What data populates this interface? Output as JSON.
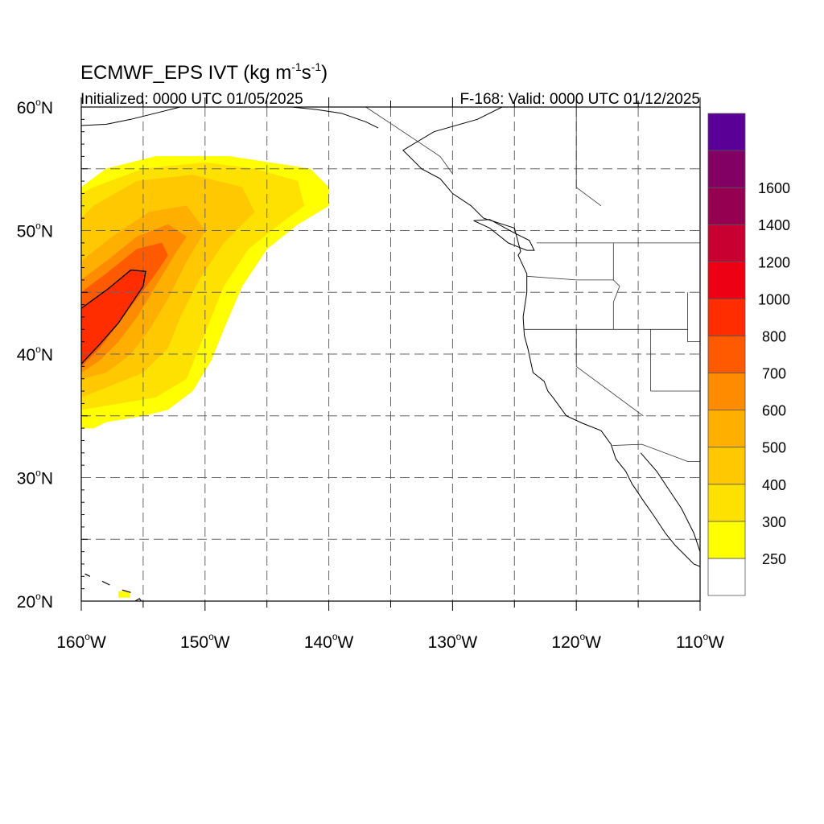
{
  "title": {
    "main": "ECMWF_EPS IVT (kg m",
    "sup1": "-1",
    "mid": "s",
    "sup2": "-1",
    "end": ")"
  },
  "subtitle_left": "Initialized: 0000 UTC 01/05/2025",
  "subtitle_right": "F-168: Valid: 0000 UTC 01/12/2025",
  "map": {
    "lon_min": -160,
    "lon_max": -110,
    "lat_min": 20,
    "lat_max": 60,
    "grid": true,
    "grid_step_deg": 5
  },
  "lon_ticks": [
    {
      "value": -160,
      "num": "160",
      "deg": "o",
      "hem": "W"
    },
    {
      "value": -150,
      "num": "150",
      "deg": "o",
      "hem": "W"
    },
    {
      "value": -140,
      "num": "140",
      "deg": "o",
      "hem": "W"
    },
    {
      "value": -130,
      "num": "130",
      "deg": "o",
      "hem": "W"
    },
    {
      "value": -120,
      "num": "120",
      "deg": "o",
      "hem": "W"
    },
    {
      "value": -110,
      "num": "110",
      "deg": "o",
      "hem": "W"
    }
  ],
  "lat_ticks": [
    {
      "value": 60,
      "num": "60",
      "deg": "o",
      "hem": "N"
    },
    {
      "value": 50,
      "num": "50",
      "deg": "o",
      "hem": "N"
    },
    {
      "value": 40,
      "num": "40",
      "deg": "o",
      "hem": "N"
    },
    {
      "value": 30,
      "num": "30",
      "deg": "o",
      "hem": "N"
    },
    {
      "value": 20,
      "num": "20",
      "deg": "o",
      "hem": "N"
    }
  ],
  "colorbar": {
    "colors": [
      "#ffffff",
      "#ffff00",
      "#ffe100",
      "#ffc800",
      "#ffaf00",
      "#ff8c00",
      "#ff5a00",
      "#ff2d00",
      "#ee0014",
      "#c80032",
      "#960050",
      "#820064",
      "#5a0096"
    ],
    "labels": [
      "250",
      "300",
      "400",
      "500",
      "600",
      "700",
      "800",
      "1000",
      "1200",
      "1400",
      "1600"
    ]
  },
  "ivt_field": {
    "units": "kg m-1 s-1",
    "contour_value": 800,
    "bands": [
      {
        "level": 250,
        "color": "#ffff00",
        "polygon": [
          [
            -160,
            34
          ],
          [
            -159,
            34
          ],
          [
            -158,
            34.5
          ],
          [
            -155,
            35
          ],
          [
            -153,
            35.5
          ],
          [
            -151,
            37
          ],
          [
            -149.5,
            39.5
          ],
          [
            -148.5,
            42
          ],
          [
            -147,
            45.5
          ],
          [
            -145,
            48.5
          ],
          [
            -142.5,
            50.5
          ],
          [
            -140,
            52
          ],
          [
            -140,
            53.5
          ],
          [
            -141.5,
            55
          ],
          [
            -148,
            56
          ],
          [
            -154,
            56
          ],
          [
            -158,
            55
          ],
          [
            -160,
            53.5
          ]
        ]
      },
      {
        "level": 300,
        "color": "#ffe100",
        "polygon": [
          [
            -160,
            35.5
          ],
          [
            -157,
            36
          ],
          [
            -154,
            36.5
          ],
          [
            -151.5,
            38
          ],
          [
            -150.5,
            40.5
          ],
          [
            -149.5,
            43
          ],
          [
            -148.5,
            45.5
          ],
          [
            -146.5,
            48.5
          ],
          [
            -144,
            50.5
          ],
          [
            -142,
            52
          ],
          [
            -142.5,
            54
          ],
          [
            -146,
            55
          ],
          [
            -150,
            55.5
          ],
          [
            -155,
            55
          ],
          [
            -159,
            53.5
          ],
          [
            -160,
            53
          ]
        ]
      },
      {
        "level": 400,
        "color": "#ffc800",
        "polygon": [
          [
            -160,
            36.5
          ],
          [
            -157.5,
            37.5
          ],
          [
            -155,
            38.5
          ],
          [
            -153,
            40.5
          ],
          [
            -152,
            43
          ],
          [
            -150.5,
            46
          ],
          [
            -148.5,
            49
          ],
          [
            -146,
            51.5
          ],
          [
            -147,
            53.5
          ],
          [
            -151,
            54.5
          ],
          [
            -155.5,
            54
          ],
          [
            -159,
            52
          ],
          [
            -160,
            51
          ]
        ]
      },
      {
        "level": 500,
        "color": "#ffaf00",
        "polygon": [
          [
            -160,
            38
          ],
          [
            -158,
            38.5
          ],
          [
            -156,
            40
          ],
          [
            -154.5,
            42
          ],
          [
            -153,
            44.5
          ],
          [
            -151.5,
            47.5
          ],
          [
            -150,
            50
          ],
          [
            -151.5,
            52
          ],
          [
            -154.5,
            51.5
          ],
          [
            -157.5,
            49.5
          ],
          [
            -160,
            47.5
          ]
        ]
      },
      {
        "level": 600,
        "color": "#ff8c00",
        "polygon": [
          [
            -160,
            38.5
          ],
          [
            -158.5,
            39.5
          ],
          [
            -157,
            41
          ],
          [
            -155.5,
            43
          ],
          [
            -154,
            45.5
          ],
          [
            -152.5,
            48
          ],
          [
            -151.5,
            49.5
          ],
          [
            -153,
            50.5
          ],
          [
            -155.5,
            49.5
          ],
          [
            -158,
            47.5
          ],
          [
            -160,
            46
          ]
        ]
      },
      {
        "level": 700,
        "color": "#ff5a00",
        "polygon": [
          [
            -160,
            39
          ],
          [
            -158.5,
            40.5
          ],
          [
            -157,
            42.5
          ],
          [
            -155.5,
            44.5
          ],
          [
            -154,
            46.5
          ],
          [
            -153,
            48
          ],
          [
            -153.5,
            49
          ],
          [
            -155.5,
            48.5
          ],
          [
            -158,
            46.5
          ],
          [
            -160,
            45
          ]
        ]
      },
      {
        "level": 800,
        "color": "#ff2d00",
        "polygon": [
          [
            -160,
            39.2
          ],
          [
            -158.5,
            40.8
          ],
          [
            -157,
            42.5
          ],
          [
            -156,
            44
          ],
          [
            -155,
            45.5
          ],
          [
            -154.8,
            46.7
          ],
          [
            -156,
            46.8
          ],
          [
            -157.8,
            45.3
          ],
          [
            -160,
            43.7
          ]
        ]
      }
    ],
    "hawaii_blip": {
      "level": 250,
      "color": "#ffff00"
    }
  },
  "coastline": [
    [
      -126,
      60
    ],
    [
      -128,
      59
    ],
    [
      -131.5,
      58
    ],
    [
      -134,
      56.5
    ],
    [
      -132.5,
      55
    ],
    [
      -131,
      54.2
    ],
    [
      -130,
      53
    ],
    [
      -128.5,
      52
    ],
    [
      -127.5,
      51
    ],
    [
      -125,
      50.2
    ],
    [
      -124.5,
      48.3
    ],
    [
      -124.7,
      48
    ],
    [
      -124,
      46.5
    ],
    [
      -124,
      45
    ],
    [
      -124.3,
      43
    ],
    [
      -124.2,
      41.5
    ],
    [
      -123.9,
      40.4
    ],
    [
      -123.5,
      38.5
    ],
    [
      -122.6,
      37.8
    ],
    [
      -122.3,
      37
    ],
    [
      -121.9,
      36.5
    ],
    [
      -120.8,
      35
    ],
    [
      -119.5,
      34.4
    ],
    [
      -118,
      33.8
    ],
    [
      -117.2,
      32.7
    ],
    [
      -116.8,
      31.5
    ],
    [
      -116,
      30.5
    ],
    [
      -115.5,
      29.5
    ],
    [
      -114.5,
      28
    ],
    [
      -113.8,
      27
    ],
    [
      -112.8,
      25.5
    ],
    [
      -112,
      24.5
    ],
    [
      -110.5,
      23
    ],
    [
      -110,
      22.8
    ]
  ],
  "gulf_california": [
    [
      -114.8,
      32
    ],
    [
      -113.5,
      30.5
    ],
    [
      -112.5,
      29
    ],
    [
      -111.5,
      27.5
    ],
    [
      -110.5,
      25.5
    ],
    [
      -110,
      24
    ],
    [
      -110,
      23
    ]
  ],
  "vancouver_island": [
    [
      -128.3,
      50.8
    ],
    [
      -127,
      50.2
    ],
    [
      -125.5,
      49
    ],
    [
      -124,
      48.4
    ],
    [
      -123.4,
      48.4
    ],
    [
      -123.8,
      49.2
    ],
    [
      -125,
      49.8
    ],
    [
      -127,
      50.9
    ],
    [
      -128.3,
      50.8
    ]
  ],
  "alaska_coast": [
    [
      -160,
      58.5
    ],
    [
      -158,
      58.6
    ],
    [
      -156,
      59
    ],
    [
      -154,
      59.5
    ],
    [
      -152,
      60
    ],
    [
      -151,
      60
    ],
    [
      -149,
      60
    ],
    [
      -148,
      60
    ],
    [
      -146,
      60
    ],
    [
      -143,
      60
    ],
    [
      -141,
      59.8
    ],
    [
      -139,
      59.5
    ],
    [
      -137,
      58.8
    ],
    [
      -136,
      58.3
    ]
  ],
  "borders": [
    [
      [
        -123.2,
        49
      ],
      [
        -110,
        49
      ]
    ],
    [
      [
        -124.2,
        42
      ],
      [
        -120,
        42
      ],
      [
        -117,
        42
      ],
      [
        -111,
        42
      ]
    ],
    [
      [
        -120,
        42
      ],
      [
        -120,
        39
      ],
      [
        -114.6,
        35
      ]
    ],
    [
      [
        -117,
        49
      ],
      [
        -117,
        46
      ],
      [
        -116.5,
        45.5
      ],
      [
        -117,
        44.2
      ],
      [
        -117,
        42
      ]
    ],
    [
      [
        -124,
        46.3
      ],
      [
        -120,
        46
      ],
      [
        -117,
        46
      ]
    ],
    [
      [
        -114,
        42
      ],
      [
        -114,
        37
      ]
    ],
    [
      [
        -111,
        45
      ],
      [
        -111,
        41
      ],
      [
        -111,
        41
      ],
      [
        -110,
        41
      ]
    ],
    [
      [
        -114,
        37
      ],
      [
        -110,
        37
      ]
    ],
    [
      [
        -117.1,
        32.6
      ],
      [
        -114.7,
        32.7
      ],
      [
        -111,
        31.3
      ],
      [
        -110,
        31.3
      ]
    ],
    [
      [
        -137,
        60
      ],
      [
        -134,
        58
      ],
      [
        -131,
        56
      ],
      [
        -130,
        54.6
      ]
    ],
    [
      [
        -120,
        60
      ],
      [
        -120,
        53.5
      ],
      [
        -118,
        52
      ]
    ]
  ],
  "islands": [
    {
      "name": "Hawaii",
      "coords": [
        [
          -156,
          19.8
        ],
        [
          -155.3,
          20.2
        ],
        [
          -154.8,
          19.5
        ]
      ]
    },
    {
      "name": "Maui",
      "coords": [
        [
          -156.7,
          20.9
        ],
        [
          -156,
          20.7
        ]
      ]
    },
    {
      "name": "Oahu",
      "coords": [
        [
          -158.3,
          21.6
        ],
        [
          -157.7,
          21.3
        ]
      ]
    },
    {
      "name": "Kauai",
      "coords": [
        [
          -159.7,
          22.2
        ],
        [
          -159.3,
          22
        ]
      ]
    }
  ]
}
